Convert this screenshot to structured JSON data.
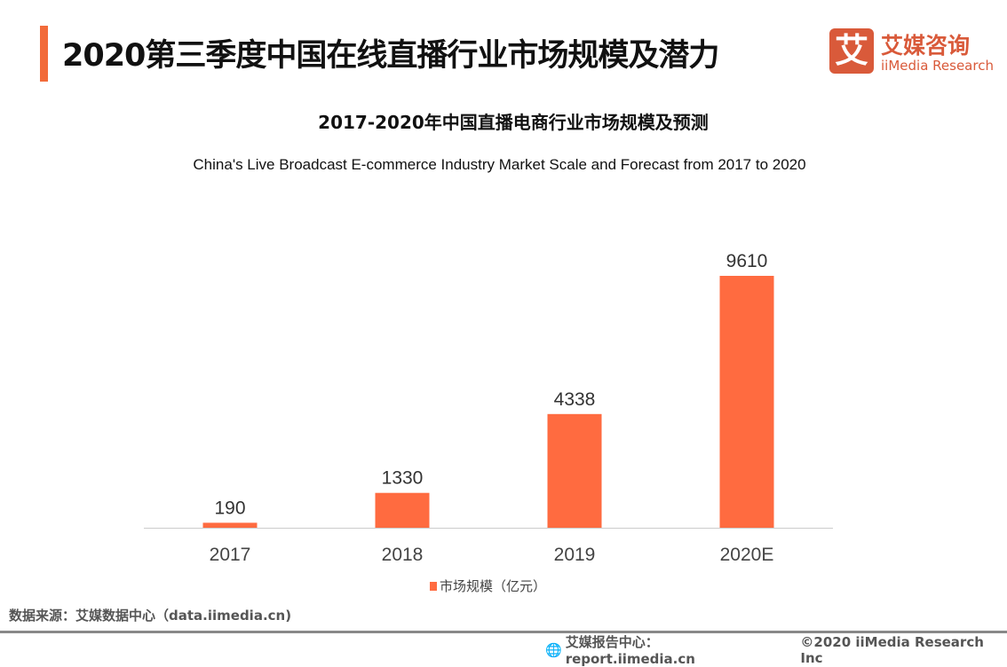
{
  "header": {
    "title": "2020第三季度中国在线直播行业市场规模及潜力",
    "accent_color": "#F26B3A"
  },
  "logo": {
    "mark": "艾",
    "name_cn": "艾媒咨询",
    "name_en": "iiMedia Research",
    "color": "#D95A3A"
  },
  "chart_data": {
    "type": "bar",
    "title": "2017-2020年中国直播电商行业市场规模及预测",
    "subtitle": "China's Live Broadcast E-commerce Industry Market Scale and Forecast from 2017 to 2020",
    "categories": [
      "2017",
      "2018",
      "2019",
      "2020E"
    ],
    "series": [
      {
        "name": "市场规模（亿元）",
        "values": [
          190,
          1330,
          4338,
          9610
        ],
        "color": "#FF6B40"
      }
    ],
    "data_labels": [
      "190",
      "1330",
      "4338",
      "9610"
    ],
    "ylim": [
      0,
      9610
    ],
    "grid": false,
    "legend_position": "bottom"
  },
  "footer": {
    "source": "数据来源：艾媒数据中心（data.iimedia.cn)",
    "report": "艾媒报告中心：report.iimedia.cn",
    "copyright": "©2020  iiMedia Research  Inc",
    "icon": "globe-icon"
  }
}
